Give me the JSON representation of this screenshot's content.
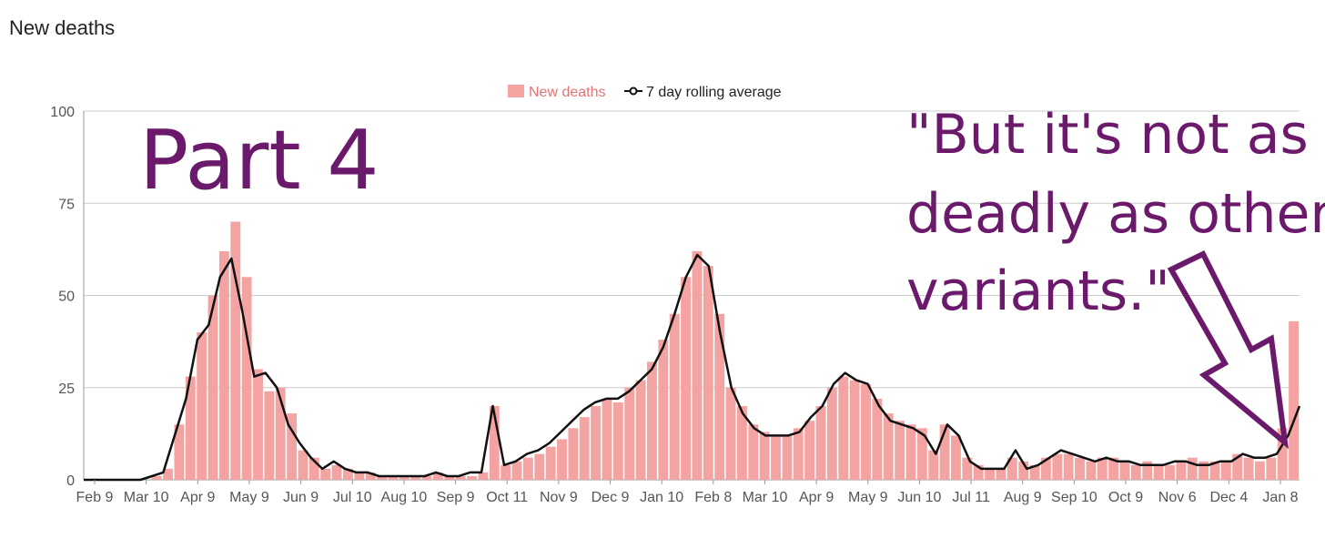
{
  "page": {
    "title": "New deaths"
  },
  "legend": {
    "bars_label": "New deaths",
    "line_label": "7 day rolling average"
  },
  "annotations": {
    "part_label": "Part 4",
    "quote_lines": [
      "\"But it's not as",
      "deadly as other",
      "variants.\""
    ]
  },
  "colors": {
    "bar": "#f4a3a3",
    "line": "#111111",
    "annotation": "#6b1a6b",
    "grid": "#cccccc"
  },
  "chart_data": {
    "type": "bar",
    "title": "New deaths",
    "xlabel": "",
    "ylabel": "",
    "ylim": [
      0,
      100
    ],
    "yticks": [
      0,
      25,
      50,
      75,
      100
    ],
    "grid": true,
    "legend_position": "top-center",
    "x_tick_labels": [
      "Feb 9",
      "Mar 10",
      "Apr 9",
      "May 9",
      "Jun 9",
      "Jul 10",
      "Aug 10",
      "Sep 9",
      "Oct 11",
      "Nov 9",
      "Dec 9",
      "Jan 10",
      "Feb 8",
      "Mar 10",
      "Apr 9",
      "May 9",
      "Jun 10",
      "Jul 11",
      "Aug 9",
      "Sep 10",
      "Oct 9",
      "Nov 6",
      "Dec 4",
      "Jan 8"
    ],
    "series": [
      {
        "name": "New deaths",
        "kind": "bar",
        "step_days": 7,
        "values": [
          0,
          0,
          0,
          0,
          0,
          0,
          1,
          3,
          15,
          28,
          40,
          50,
          62,
          70,
          55,
          30,
          24,
          25,
          18,
          8,
          6,
          3,
          4,
          3,
          2,
          2,
          1,
          1,
          1,
          1,
          1,
          2,
          1,
          1,
          1,
          2,
          20,
          4,
          5,
          6,
          7,
          9,
          11,
          14,
          17,
          20,
          22,
          21,
          25,
          27,
          32,
          38,
          45,
          55,
          62,
          58,
          45,
          25,
          20,
          15,
          13,
          12,
          12,
          14,
          16,
          20,
          25,
          28,
          27,
          26,
          22,
          18,
          16,
          15,
          14,
          8,
          15,
          12,
          6,
          4,
          3,
          3,
          6,
          5,
          4,
          6,
          7,
          7,
          6,
          5,
          6,
          6,
          5,
          4,
          5,
          4,
          4,
          5,
          6,
          5,
          5,
          5,
          7,
          6,
          5,
          6,
          14,
          43
        ]
      },
      {
        "name": "7 day rolling average",
        "kind": "line",
        "step_days": 7,
        "values": [
          0,
          0,
          0,
          0,
          0,
          0,
          1,
          2,
          12,
          22,
          38,
          42,
          55,
          60,
          45,
          28,
          29,
          25,
          15,
          10,
          6,
          3,
          5,
          3,
          2,
          2,
          1,
          1,
          1,
          1,
          1,
          2,
          1,
          1,
          2,
          2,
          20,
          4,
          5,
          7,
          8,
          10,
          13,
          16,
          19,
          21,
          22,
          22,
          24,
          27,
          30,
          36,
          45,
          55,
          61,
          58,
          40,
          25,
          18,
          14,
          12,
          12,
          12,
          13,
          17,
          20,
          26,
          29,
          27,
          26,
          20,
          16,
          15,
          14,
          12,
          7,
          15,
          12,
          5,
          3,
          3,
          3,
          8,
          3,
          4,
          6,
          8,
          7,
          6,
          5,
          6,
          5,
          5,
          4,
          4,
          4,
          5,
          5,
          4,
          4,
          5,
          5,
          7,
          6,
          6,
          7,
          12,
          20
        ]
      }
    ]
  }
}
